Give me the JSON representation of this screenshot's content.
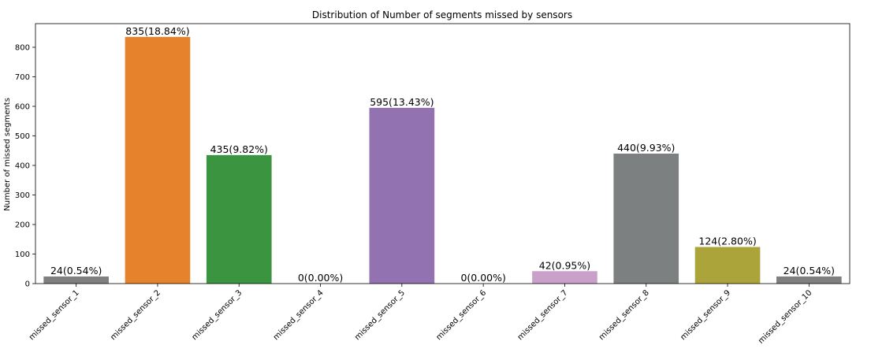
{
  "chart_data": {
    "type": "bar",
    "title": "Distribution of Number of segments missed by sensors",
    "xlabel": "",
    "ylabel": "Number of missed segments",
    "ylim": [
      0,
      880
    ],
    "yticks": [
      0,
      100,
      200,
      300,
      400,
      500,
      600,
      700,
      800
    ],
    "grid": false,
    "legend": "none",
    "categories": [
      "missed_sensor_1",
      "missed_sensor_2",
      "missed_sensor_3",
      "missed_sensor_4",
      "missed_sensor_5",
      "missed_sensor_6",
      "missed_sensor_7",
      "missed_sensor_8",
      "missed_sensor_9",
      "missed_sensor_10"
    ],
    "values": [
      24,
      835,
      435,
      0,
      595,
      0,
      42,
      440,
      124,
      24
    ],
    "data_labels": [
      "24(0.54%)",
      "835(18.84%)",
      "435(9.82%)",
      "0(0.00%)",
      "595(13.43%)",
      "0(0.00%)",
      "42(0.95%)",
      "440(9.93%)",
      "124(2.80%)",
      "24(0.54%)"
    ],
    "colors": [
      "#7f7f7f",
      "#e6822b",
      "#3a9440",
      "#d62728",
      "#9372b2",
      "#8c564b",
      "#c9a0c9",
      "#7c8080",
      "#aba43a",
      "#7f7f7f"
    ]
  }
}
